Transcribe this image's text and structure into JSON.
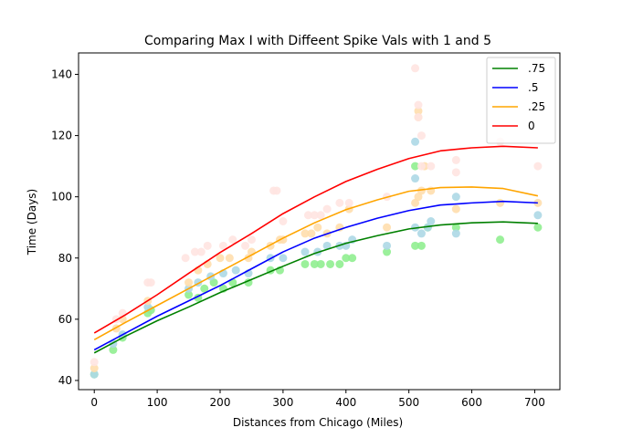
{
  "chart_data": {
    "type": "line",
    "title": "Comparing Max I with Diffeent Spike Vals with 1 and 5",
    "xlabel": "Distances from Chicago (Miles)",
    "ylabel": "Time (Days)",
    "xlim": [
      -25,
      740
    ],
    "ylim": [
      37,
      147
    ],
    "xticks": [
      0,
      100,
      200,
      300,
      400,
      500,
      600,
      700
    ],
    "yticks": [
      40,
      60,
      80,
      100,
      120,
      140
    ],
    "grid": false,
    "legend_position": "top-right",
    "series": [
      {
        "name": ".75",
        "color": "#008000",
        "x": [
          0,
          50,
          100,
          150,
          200,
          250,
          300,
          350,
          400,
          450,
          500,
          550,
          600,
          650,
          705
        ],
        "values": [
          49,
          54.5,
          59.5,
          64,
          68.7,
          73,
          77.3,
          81.5,
          84.8,
          87.3,
          89.5,
          90.8,
          91.5,
          91.8,
          91.3
        ]
      },
      {
        "name": ".5",
        "color": "#0000ff",
        "x": [
          0,
          50,
          100,
          150,
          200,
          250,
          300,
          350,
          400,
          450,
          500,
          550,
          600,
          650,
          705
        ],
        "values": [
          50,
          55.5,
          61,
          66,
          71,
          76.5,
          82,
          86.5,
          90,
          93,
          95.5,
          97.3,
          98,
          98.5,
          98
        ]
      },
      {
        "name": ".25",
        "color": "#ffa500",
        "x": [
          0,
          50,
          100,
          150,
          200,
          250,
          300,
          350,
          400,
          450,
          500,
          550,
          600,
          650,
          705
        ],
        "values": [
          53.3,
          59,
          64.5,
          70,
          75.5,
          81,
          86.5,
          91.5,
          95.8,
          99,
          101.8,
          103,
          103.2,
          102.7,
          100.3
        ]
      },
      {
        "name": "0",
        "color": "#ff0000",
        "x": [
          0,
          50,
          100,
          150,
          200,
          250,
          300,
          350,
          400,
          450,
          500,
          550,
          600,
          650,
          705
        ],
        "values": [
          55.5,
          61.5,
          68,
          75,
          81.8,
          88,
          94.5,
          100,
          105,
          109,
          112.5,
          115,
          116,
          116.5,
          116
        ]
      }
    ],
    "scatter_series": [
      {
        "color": "#90ee90",
        "points": [
          [
            0,
            42
          ],
          [
            30,
            50
          ],
          [
            45,
            54
          ],
          [
            85,
            62
          ],
          [
            90,
            63
          ],
          [
            150,
            68
          ],
          [
            165,
            67
          ],
          [
            175,
            70
          ],
          [
            190,
            72
          ],
          [
            205,
            70
          ],
          [
            220,
            72
          ],
          [
            245,
            72
          ],
          [
            280,
            76
          ],
          [
            295,
            76
          ],
          [
            335,
            78
          ],
          [
            350,
            78
          ],
          [
            360,
            78
          ],
          [
            375,
            78
          ],
          [
            390,
            78
          ],
          [
            400,
            80
          ],
          [
            410,
            80
          ],
          [
            465,
            82
          ],
          [
            510,
            84
          ],
          [
            520,
            84
          ],
          [
            510,
            110
          ],
          [
            530,
            90
          ],
          [
            575,
            90
          ],
          [
            645,
            86
          ],
          [
            705,
            90
          ]
        ]
      },
      {
        "color": "#add8e6",
        "points": [
          [
            0,
            42
          ],
          [
            30,
            52
          ],
          [
            45,
            55
          ],
          [
            85,
            64
          ],
          [
            150,
            70
          ],
          [
            165,
            72
          ],
          [
            185,
            74
          ],
          [
            205,
            75
          ],
          [
            225,
            76
          ],
          [
            245,
            75
          ],
          [
            280,
            80
          ],
          [
            300,
            80
          ],
          [
            335,
            82
          ],
          [
            355,
            82
          ],
          [
            370,
            84
          ],
          [
            390,
            84
          ],
          [
            400,
            84
          ],
          [
            410,
            86
          ],
          [
            465,
            84
          ],
          [
            510,
            90
          ],
          [
            510,
            106
          ],
          [
            510,
            118
          ],
          [
            520,
            88
          ],
          [
            530,
            90
          ],
          [
            535,
            92
          ],
          [
            575,
            88
          ],
          [
            575,
            100
          ],
          [
            705,
            94
          ]
        ]
      },
      {
        "color": "#ffdead",
        "points": [
          [
            0,
            44
          ],
          [
            35,
            57
          ],
          [
            45,
            60
          ],
          [
            85,
            66
          ],
          [
            150,
            72
          ],
          [
            165,
            76
          ],
          [
            180,
            78
          ],
          [
            200,
            80
          ],
          [
            215,
            80
          ],
          [
            245,
            80
          ],
          [
            250,
            82
          ],
          [
            280,
            84
          ],
          [
            295,
            86
          ],
          [
            300,
            86
          ],
          [
            335,
            88
          ],
          [
            345,
            88
          ],
          [
            355,
            90
          ],
          [
            370,
            88
          ],
          [
            390,
            90
          ],
          [
            405,
            96
          ],
          [
            465,
            90
          ],
          [
            510,
            98
          ],
          [
            515,
            100
          ],
          [
            520,
            102
          ],
          [
            515,
            128
          ],
          [
            515,
            126
          ],
          [
            525,
            110
          ],
          [
            535,
            102
          ],
          [
            575,
            96
          ],
          [
            645,
            98
          ],
          [
            705,
            98
          ]
        ]
      },
      {
        "color": "#ffe4e1",
        "points": [
          [
            0,
            46
          ],
          [
            35,
            60
          ],
          [
            45,
            62
          ],
          [
            85,
            72
          ],
          [
            90,
            72
          ],
          [
            145,
            80
          ],
          [
            160,
            82
          ],
          [
            170,
            82
          ],
          [
            180,
            84
          ],
          [
            205,
            84
          ],
          [
            220,
            86
          ],
          [
            240,
            84
          ],
          [
            250,
            86
          ],
          [
            285,
            102
          ],
          [
            290,
            102
          ],
          [
            300,
            92
          ],
          [
            340,
            94
          ],
          [
            350,
            94
          ],
          [
            360,
            94
          ],
          [
            370,
            96
          ],
          [
            390,
            98
          ],
          [
            405,
            98
          ],
          [
            465,
            100
          ],
          [
            510,
            142
          ],
          [
            515,
            130
          ],
          [
            515,
            126
          ],
          [
            520,
            120
          ],
          [
            520,
            110
          ],
          [
            535,
            110
          ],
          [
            575,
            108
          ],
          [
            575,
            112
          ],
          [
            645,
            118
          ],
          [
            705,
            110
          ]
        ]
      }
    ]
  }
}
